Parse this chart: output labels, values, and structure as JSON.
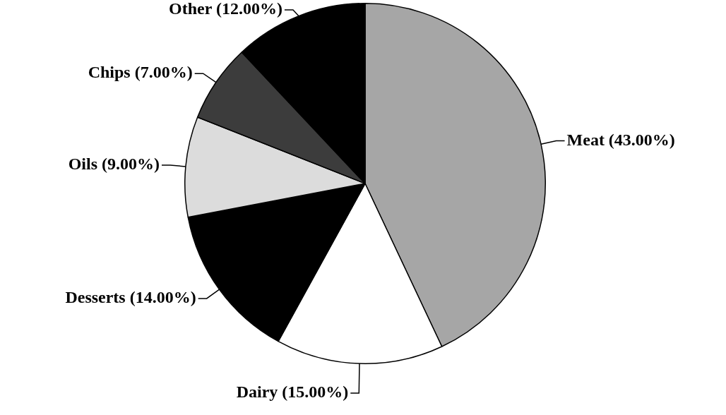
{
  "chart_data": {
    "type": "pie",
    "categories": [
      "Meat (43.00%)",
      "Dairy (15.00%)",
      "Desserts (14.00%)",
      "Oils (9.00%)",
      "Chips (7.00%)",
      "Other (12.00%)"
    ],
    "values": [
      43,
      15,
      14,
      9,
      7,
      12
    ],
    "colors": [
      "#a6a6a6",
      "#ffffff",
      "#000000",
      "#dcdcdc",
      "#3c3c3c",
      "#000000"
    ],
    "legend": false
  }
}
